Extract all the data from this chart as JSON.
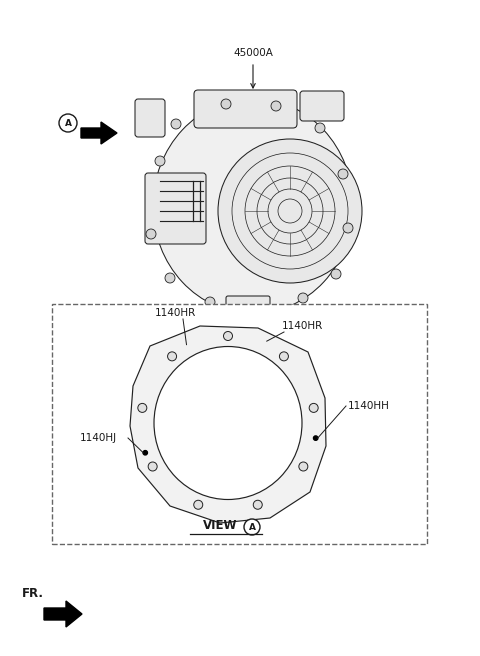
{
  "bg_color": "#ffffff",
  "line_color": "#1a1a1a",
  "dashed_color": "#555555",
  "fig_width": 4.8,
  "fig_height": 6.56,
  "dpi": 100,
  "label_45000A": "45000A",
  "label_1140HR_1": "1140HR",
  "label_1140HR_2": "1140HR",
  "label_1140HH": "1140HH",
  "label_1140HJ": "1140HJ",
  "label_VIEW_A": "VIEW",
  "label_FR": "FR.",
  "font_size_labels": 7.5,
  "font_size_view": 8.5,
  "font_size_FR": 8.5
}
